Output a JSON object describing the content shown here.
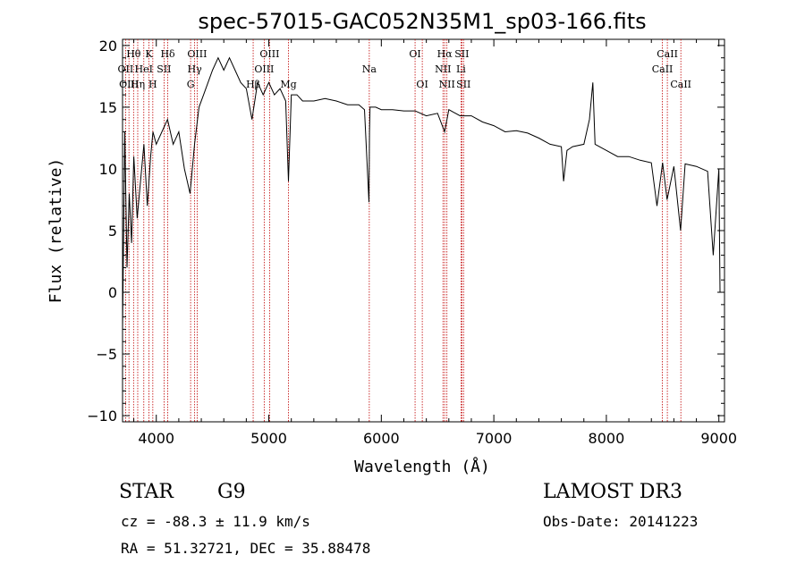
{
  "chart_data": {
    "type": "line",
    "title": "spec-57015-GAC052N35M1_sp03-166.fits",
    "xlabel": "Wavelength (Å)",
    "ylabel": "Flux (relative)",
    "xlim": [
      3700,
      9050
    ],
    "ylim": [
      -10.5,
      20.5
    ],
    "xticks": [
      4000,
      5000,
      6000,
      7000,
      8000,
      9000
    ],
    "yticks": [
      -10,
      -5,
      0,
      5,
      10,
      15,
      20
    ],
    "series": [
      {
        "name": "flux",
        "x": [
          3700,
          3720,
          3740,
          3760,
          3780,
          3800,
          3830,
          3860,
          3890,
          3920,
          3950,
          3970,
          4000,
          4050,
          4100,
          4150,
          4200,
          4250,
          4300,
          4340,
          4380,
          4420,
          4460,
          4500,
          4550,
          4600,
          4650,
          4700,
          4750,
          4800,
          4850,
          4900,
          4950,
          5000,
          5050,
          5100,
          5150,
          5175,
          5200,
          5250,
          5300,
          5400,
          5500,
          5600,
          5700,
          5800,
          5850,
          5890,
          5895,
          5900,
          5950,
          6000,
          6100,
          6200,
          6300,
          6400,
          6500,
          6563,
          6600,
          6700,
          6800,
          6900,
          7000,
          7100,
          7200,
          7300,
          7400,
          7500,
          7600,
          7620,
          7650,
          7700,
          7800,
          7850,
          7880,
          7900,
          8000,
          8100,
          8200,
          8300,
          8400,
          8450,
          8500,
          8540,
          8600,
          8660,
          8700,
          8800,
          8900,
          8950,
          9000,
          9010
        ],
        "y": [
          -3,
          13,
          2,
          8,
          4,
          11,
          6,
          9,
          12,
          7,
          11,
          13,
          12,
          13,
          14,
          12,
          13,
          10,
          8,
          12,
          15,
          16,
          17,
          18,
          19,
          18,
          19,
          18,
          17,
          16.5,
          14,
          17,
          16,
          17,
          16,
          16.5,
          15.5,
          9,
          16,
          16,
          15.5,
          15.5,
          15.7,
          15.5,
          15.2,
          15.2,
          14.8,
          7.3,
          13,
          15,
          15,
          14.8,
          14.8,
          14.7,
          14.7,
          14.3,
          14.5,
          13,
          14.8,
          14.3,
          14.3,
          13.8,
          13.5,
          13,
          13.1,
          12.9,
          12.5,
          12,
          11.8,
          9,
          11.5,
          11.8,
          12,
          14,
          17,
          12,
          11.5,
          11,
          11,
          10.7,
          10.5,
          7,
          10.5,
          7.5,
          10.2,
          5,
          10.4,
          10.2,
          9.8,
          3,
          10,
          0
        ]
      }
    ],
    "lines": [
      {
        "label": "Hθ",
        "x": 3798,
        "row": 0
      },
      {
        "label": "OII",
        "x": 3727,
        "row": 1
      },
      {
        "label": "OIII",
        "x": 3757,
        "row": 2
      },
      {
        "label": "K",
        "x": 3934,
        "row": 0
      },
      {
        "label": "HeI",
        "x": 3889,
        "row": 1
      },
      {
        "label": "Hη",
        "x": 3835,
        "row": 2
      },
      {
        "label": "H",
        "x": 3969,
        "row": 2
      },
      {
        "label": "Hδ",
        "x": 4102,
        "row": 0
      },
      {
        "label": "SII",
        "x": 4069,
        "row": 1
      },
      {
        "label": "OIII",
        "x": 4363,
        "row": 0
      },
      {
        "label": "Hγ",
        "x": 4341,
        "row": 1
      },
      {
        "label": "G",
        "x": 4305,
        "row": 2
      },
      {
        "label": "OIII",
        "x": 5007,
        "row": 0
      },
      {
        "label": "OIII",
        "x": 4959,
        "row": 1
      },
      {
        "label": "Hβ",
        "x": 4861,
        "row": 2
      },
      {
        "label": "Mg",
        "x": 5175,
        "row": 2
      },
      {
        "label": "Na",
        "x": 5893,
        "row": 1
      },
      {
        "label": "OI",
        "x": 6300,
        "row": 0
      },
      {
        "label": "OI",
        "x": 6364,
        "row": 2
      },
      {
        "label": "Hα",
        "x": 6563,
        "row": 0
      },
      {
        "label": "SII",
        "x": 6716,
        "row": 0
      },
      {
        "label": "NII",
        "x": 6548,
        "row": 1
      },
      {
        "label": "Li",
        "x": 6708,
        "row": 1
      },
      {
        "label": "NII",
        "x": 6583,
        "row": 2
      },
      {
        "label": "SII",
        "x": 6731,
        "row": 2
      },
      {
        "label": "CaII",
        "x": 8542,
        "row": 0
      },
      {
        "label": "CaII",
        "x": 8498,
        "row": 1
      },
      {
        "label": "CaII",
        "x": 8662,
        "row": 2
      }
    ]
  },
  "footer": {
    "object_type": "STAR",
    "spectral_class": "G9",
    "survey": "LAMOST DR3",
    "velocity": "cz = -88.3 ± 11.9 km/s",
    "obs_date": "Obs-Date: 20141223",
    "coordinates": "RA =  51.32721, DEC =  35.88478"
  }
}
